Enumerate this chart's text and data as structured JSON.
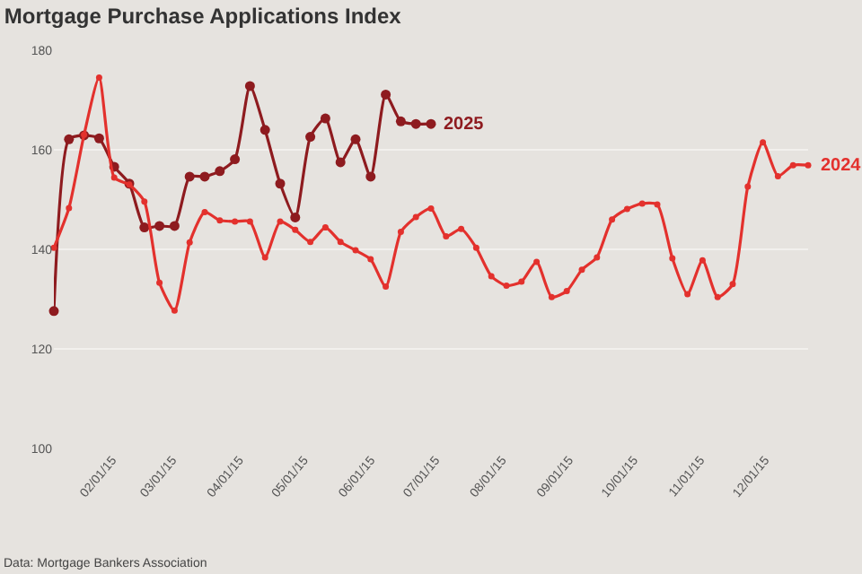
{
  "chart_data": {
    "type": "line",
    "title": "Mortgage Purchase Applications Index",
    "x": [
      "2015-01-05",
      "2015-01-12",
      "2015-01-19",
      "2015-01-26",
      "2015-02-02",
      "2015-02-09",
      "2015-02-16",
      "2015-02-23",
      "2015-03-02",
      "2015-03-09",
      "2015-03-16",
      "2015-03-23",
      "2015-03-30",
      "2015-04-06",
      "2015-04-13",
      "2015-04-20",
      "2015-04-27",
      "2015-05-04",
      "2015-05-11",
      "2015-05-18",
      "2015-05-25",
      "2015-06-01",
      "2015-06-08",
      "2015-06-15",
      "2015-06-22",
      "2015-06-29",
      "2015-07-06",
      "2015-07-13",
      "2015-07-20",
      "2015-07-27",
      "2015-08-03",
      "2015-08-10",
      "2015-08-17",
      "2015-08-24",
      "2015-08-31",
      "2015-09-07",
      "2015-09-14",
      "2015-09-21",
      "2015-09-28",
      "2015-10-05",
      "2015-10-12",
      "2015-10-19",
      "2015-10-26",
      "2015-11-02",
      "2015-11-09",
      "2015-11-16",
      "2015-11-23",
      "2015-11-30",
      "2015-12-07",
      "2015-12-14",
      "2015-12-21"
    ],
    "series": [
      {
        "name": "2025",
        "color": "#8e1b1f",
        "values": [
          127.6,
          162.1,
          162.9,
          162.3,
          156.6,
          153.2,
          144.4,
          144.7,
          144.7,
          154.6,
          154.6,
          155.7,
          158.1,
          172.8,
          164,
          153.2,
          146.4,
          162.6,
          166.3,
          157.5,
          162.1,
          154.6,
          171.1,
          165.7,
          165.2,
          165.2,
          null,
          null,
          null,
          null,
          null,
          null,
          null,
          null,
          null,
          null,
          null,
          null,
          null,
          null,
          null,
          null,
          null,
          null,
          null,
          null,
          null,
          null,
          null,
          null,
          null
        ]
      },
      {
        "name": "2024",
        "color": "#e3312d",
        "values": [
          140.3,
          148.3,
          163,
          174.5,
          154.4,
          153,
          149.6,
          133.3,
          127.7,
          141.4,
          147.5,
          145.8,
          145.6,
          145.6,
          138.4,
          145.6,
          143.9,
          141.5,
          144.4,
          141.5,
          139.8,
          138,
          132.5,
          143.5,
          146.5,
          148.2,
          142.6,
          144.1,
          140.3,
          134.6,
          132.7,
          133.5,
          137.5,
          130.4,
          131.6,
          135.9,
          138.4,
          146,
          148.1,
          149.2,
          149,
          138.2,
          131,
          137.8,
          130.4,
          133,
          152.6,
          161.5,
          154.7,
          156.9,
          156.9
        ]
      }
    ],
    "xlim": [
      "2015-01-05",
      "2015-12-21"
    ],
    "xticks": [
      {
        "value": "2015-02-01",
        "label": "02/01/15"
      },
      {
        "value": "2015-03-01",
        "label": "03/01/15"
      },
      {
        "value": "2015-04-01",
        "label": "04/01/15"
      },
      {
        "value": "2015-05-01",
        "label": "05/01/15"
      },
      {
        "value": "2015-06-01",
        "label": "06/01/15"
      },
      {
        "value": "2015-07-01",
        "label": "07/01/15"
      },
      {
        "value": "2015-08-01",
        "label": "08/01/15"
      },
      {
        "value": "2015-09-01",
        "label": "09/01/15"
      },
      {
        "value": "2015-10-01",
        "label": "10/01/15"
      },
      {
        "value": "2015-11-01",
        "label": "11/01/15"
      },
      {
        "value": "2015-12-01",
        "label": "12/01/15"
      }
    ],
    "ylim": [
      100,
      180
    ],
    "yticks": [
      100,
      120,
      140,
      160,
      180
    ],
    "grid": "y",
    "legend": false,
    "marker": "circle",
    "line_style": "solid",
    "annotations": [
      "Data: Mortgage Bankers Association"
    ]
  }
}
